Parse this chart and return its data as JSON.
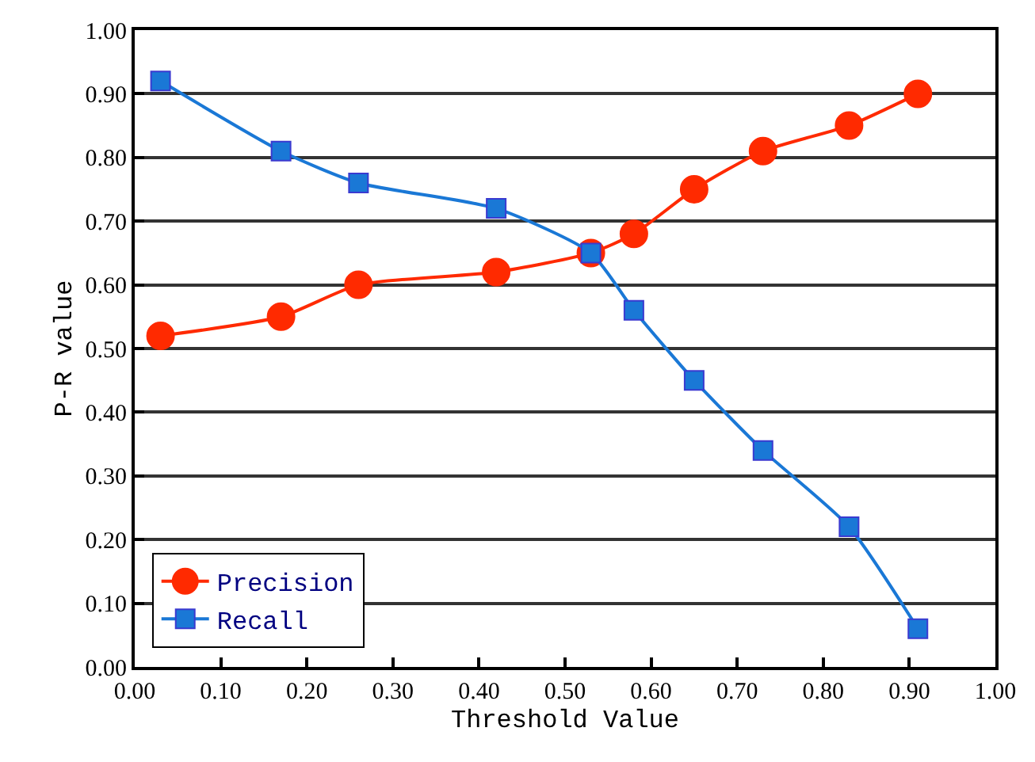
{
  "chart_data": {
    "type": "line",
    "xlabel": "Threshold Value",
    "ylabel": "P-R value",
    "series": [
      {
        "name": "Precision",
        "color": "#ff2a00",
        "marker": "circle",
        "x": [
          0.03,
          0.17,
          0.26,
          0.42,
          0.53,
          0.58,
          0.65,
          0.73,
          0.83,
          0.91
        ],
        "values": [
          0.52,
          0.55,
          0.6,
          0.62,
          0.65,
          0.68,
          0.75,
          0.81,
          0.85,
          0.9
        ]
      },
      {
        "name": "Recall",
        "color": "#1a78d6",
        "marker": "square",
        "x": [
          0.03,
          0.17,
          0.26,
          0.42,
          0.53,
          0.58,
          0.65,
          0.73,
          0.83,
          0.91
        ],
        "values": [
          0.92,
          0.81,
          0.76,
          0.72,
          0.65,
          0.56,
          0.45,
          0.34,
          0.22,
          0.06
        ]
      }
    ],
    "xlim": [
      0,
      1
    ],
    "xticks": [
      {
        "value": 0,
        "label": "0.00"
      },
      {
        "value": 0.1,
        "label": "0.10"
      },
      {
        "value": 0.2,
        "label": "0.20"
      },
      {
        "value": 0.3,
        "label": "0.30"
      },
      {
        "value": 0.4,
        "label": "0.40"
      },
      {
        "value": 0.5,
        "label": "0.50"
      },
      {
        "value": 0.6,
        "label": "0.60"
      },
      {
        "value": 0.7,
        "label": "0.70"
      },
      {
        "value": 0.8,
        "label": "0.80"
      },
      {
        "value": 0.9,
        "label": "0.90"
      },
      {
        "value": 1,
        "label": "1.00"
      }
    ],
    "ylim": [
      0,
      1
    ],
    "yticks": [
      {
        "value": 0,
        "label": "0.00"
      },
      {
        "value": 0.1,
        "label": "0.10"
      },
      {
        "value": 0.2,
        "label": "0.20"
      },
      {
        "value": 0.3,
        "label": "0.30"
      },
      {
        "value": 0.4,
        "label": "0.40"
      },
      {
        "value": 0.5,
        "label": "0.50"
      },
      {
        "value": 0.6,
        "label": "0.60"
      },
      {
        "value": 0.7,
        "label": "0.70"
      },
      {
        "value": 0.8,
        "label": "0.80"
      },
      {
        "value": 0.9,
        "label": "0.90"
      },
      {
        "value": 1,
        "label": "1.00"
      }
    ],
    "grid": "y",
    "legend": "bottom left",
    "line_style": "solid"
  }
}
